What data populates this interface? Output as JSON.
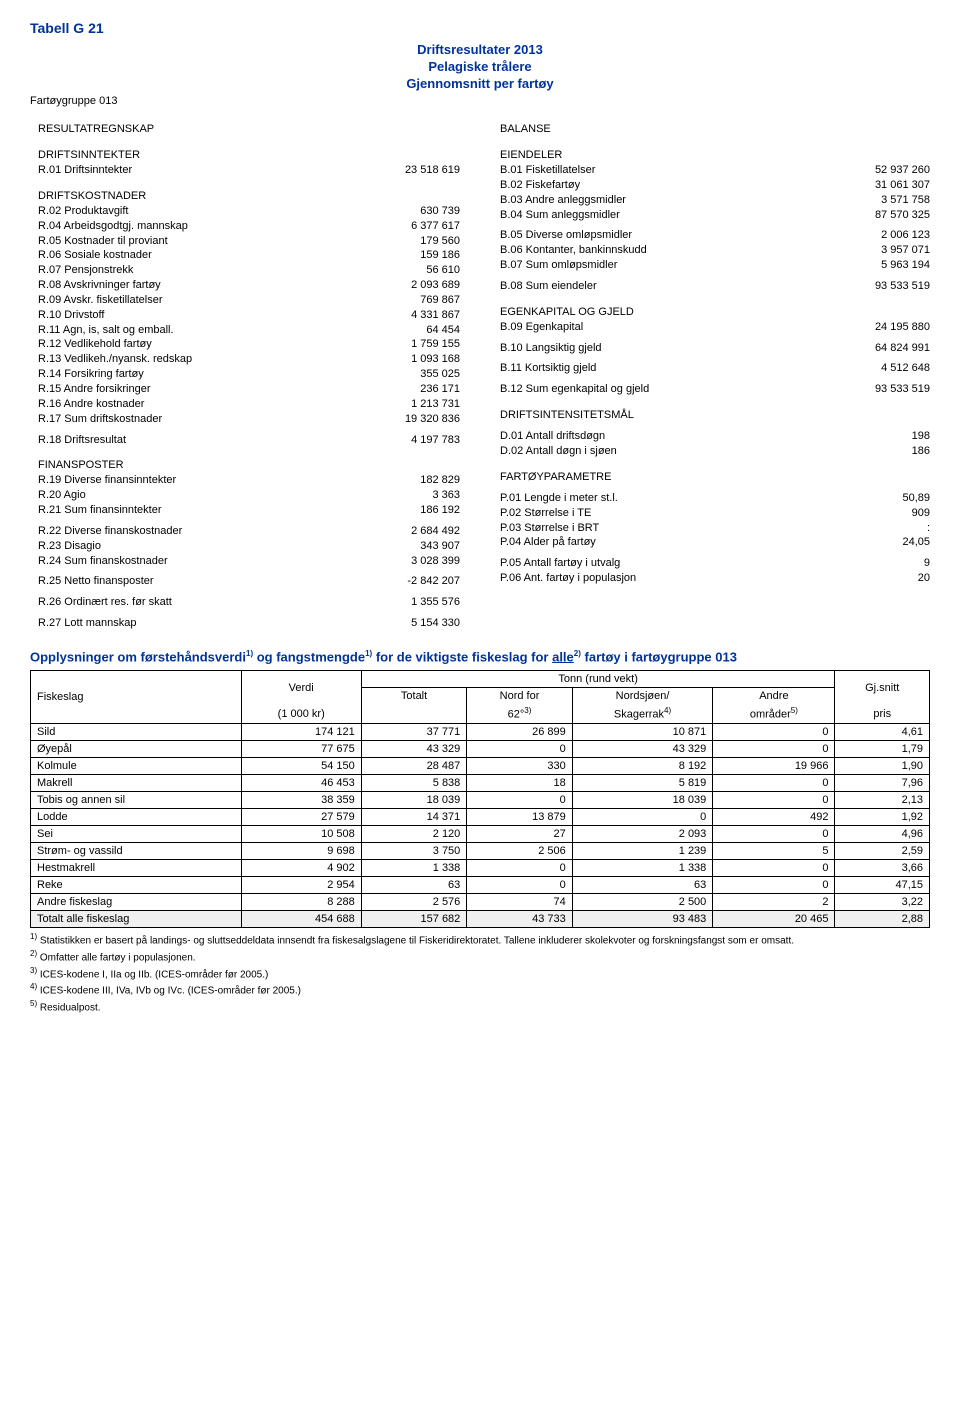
{
  "header": {
    "table_label": "Tabell G 21",
    "title": "Driftsresultater 2013",
    "subtitle1": "Pelagiske trålere",
    "subtitle2": "Gjennomsnitt per fartøy",
    "group": "Fartøygruppe 013"
  },
  "left": {
    "h1": "RESULTATREGNSKAP",
    "h2": "DRIFTSINNTEKTER",
    "r01": {
      "l": "R.01 Driftsinntekter",
      "v": "23 518 619"
    },
    "h3": "DRIFTSKOSTNADER",
    "r02": {
      "l": "R.02 Produktavgift",
      "v": "630 739"
    },
    "r03": {
      "l": "R.04 Arbeidsgodtgj. mannskap",
      "v": "6 377 617"
    },
    "r04": {
      "l": "R.05 Kostnader til proviant",
      "v": "179 560"
    },
    "r05": {
      "l": "R.06 Sosiale kostnader",
      "v": "159 186"
    },
    "r06": {
      "l": "R.07 Pensjonstrekk",
      "v": "56 610"
    },
    "r07": {
      "l": "R.08 Avskrivninger fartøy",
      "v": "2 093 689"
    },
    "r08": {
      "l": "R.09 Avskr. fisketillatelser",
      "v": "769 867"
    },
    "r09": {
      "l": "R.10 Drivstoff",
      "v": "4 331 867"
    },
    "r10": {
      "l": "R.11 Agn, is, salt og emball.",
      "v": "64 454"
    },
    "r11": {
      "l": "R.12 Vedlikehold fartøy",
      "v": "1 759 155"
    },
    "r12": {
      "l": "R.13 Vedlikeh./nyansk. redskap",
      "v": "1 093 168"
    },
    "r13": {
      "l": "R.14 Forsikring fartøy",
      "v": "355 025"
    },
    "r14": {
      "l": "R.15 Andre forsikringer",
      "v": "236 171"
    },
    "r15": {
      "l": "R.16 Andre kostnader",
      "v": "1 213 731"
    },
    "r16": {
      "l": "R.17 Sum driftskostnader",
      "v": "19 320 836"
    },
    "r17": {
      "l": "R.18 Driftsresultat",
      "v": "4 197 783"
    },
    "h4": "FINANSPOSTER",
    "r18": {
      "l": "R.19 Diverse finansinntekter",
      "v": "182 829"
    },
    "r19": {
      "l": "R.20 Agio",
      "v": "3 363"
    },
    "r20": {
      "l": "R.21 Sum finansinntekter",
      "v": "186 192"
    },
    "r21": {
      "l": "R.22 Diverse finanskostnader",
      "v": "2 684 492"
    },
    "r22": {
      "l": "R.23 Disagio",
      "v": "343 907"
    },
    "r23": {
      "l": "R.24 Sum finanskostnader",
      "v": "3 028 399"
    },
    "r24": {
      "l": "R.25 Netto finansposter",
      "v": "-2 842 207"
    },
    "r25": {
      "l": "R.26 Ordinært res. før skatt",
      "v": "1 355 576"
    },
    "r26": {
      "l": "R.27 Lott mannskap",
      "v": "5 154 330"
    }
  },
  "right": {
    "h1": "BALANSE",
    "h2": "EIENDELER",
    "b01": {
      "l": "B.01 Fisketillatelser",
      "v": "52 937 260"
    },
    "b02": {
      "l": "B.02 Fiskefartøy",
      "v": "31 061 307"
    },
    "b03": {
      "l": "B.03 Andre anleggsmidler",
      "v": "3 571 758"
    },
    "b04": {
      "l": "B.04 Sum anleggsmidler",
      "v": "87 570 325"
    },
    "b05": {
      "l": "B.05 Diverse omløpsmidler",
      "v": "2 006 123"
    },
    "b06": {
      "l": "B.06 Kontanter, bankinnskudd",
      "v": "3 957 071"
    },
    "b07": {
      "l": "B.07 Sum omløpsmidler",
      "v": "5 963 194"
    },
    "b08": {
      "l": "B.08 Sum eiendeler",
      "v": "93 533 519"
    },
    "h3": "EGENKAPITAL OG GJELD",
    "b09": {
      "l": "B.09 Egenkapital",
      "v": "24 195 880"
    },
    "b10": {
      "l": "B.10 Langsiktig gjeld",
      "v": "64 824 991"
    },
    "b11": {
      "l": "B.11 Kortsiktig gjeld",
      "v": "4 512 648"
    },
    "b12": {
      "l": "B.12 Sum egenkapital og gjeld",
      "v": "93 533 519"
    },
    "h4": "DRIFTSINTENSITETSMÅL",
    "d01": {
      "l": "D.01 Antall driftsdøgn",
      "v": "198"
    },
    "d02": {
      "l": "D.02 Antall døgn i sjøen",
      "v": "186"
    },
    "h5": "FARTØYPARAMETRE",
    "p01": {
      "l": "P.01 Lengde i meter st.l.",
      "v": "50,89"
    },
    "p02": {
      "l": "P.02 Størrelse i TE",
      "v": "909"
    },
    "p03": {
      "l": "P.03 Størrelse i BRT",
      "v": ":"
    },
    "p04": {
      "l": "P.04 Alder på fartøy",
      "v": "24,05"
    },
    "p05": {
      "l": "P.05 Antall fartøy i utvalg",
      "v": "9"
    },
    "p06": {
      "l": "P.06 Ant. fartøy i populasjon",
      "v": "20"
    }
  },
  "catch_section": {
    "title_pre": "Opplysninger om førstehåndsverdi",
    "title_mid": " og fangstmengde",
    "title_post": " for de viktigste fiskeslag for ",
    "title_link": "alle",
    "title_end": " fartøy i fartøygruppe 013",
    "sup1": "1)",
    "sup2": "2)",
    "tonn_header": "Tonn (rund vekt)",
    "col_fiskeslag": "Fiskeslag",
    "col_verdi": "Verdi",
    "col_verdi_unit": "(1 000 kr)",
    "col_totalt": "Totalt",
    "col_nord": "Nord for",
    "col_nord_unit": "62°",
    "col_nord_sup": "3)",
    "col_nordsjoen": "Nordsjøen/",
    "col_skagerrak": "Skagerrak",
    "col_skag_sup": "4)",
    "col_andre": "Andre",
    "col_andre2": "områder",
    "col_andre_sup": "5)",
    "col_pris": "Gj.snitt",
    "col_pris2": "pris",
    "rows": [
      {
        "name": "Sild",
        "v": [
          "174 121",
          "37 771",
          "26 899",
          "10 871",
          "0",
          "4,61"
        ]
      },
      {
        "name": "Øyepål",
        "v": [
          "77 675",
          "43 329",
          "0",
          "43 329",
          "0",
          "1,79"
        ]
      },
      {
        "name": "Kolmule",
        "v": [
          "54 150",
          "28 487",
          "330",
          "8 192",
          "19 966",
          "1,90"
        ]
      },
      {
        "name": "Makrell",
        "v": [
          "46 453",
          "5 838",
          "18",
          "5 819",
          "0",
          "7,96"
        ]
      },
      {
        "name": "Tobis og annen sil",
        "v": [
          "38 359",
          "18 039",
          "0",
          "18 039",
          "0",
          "2,13"
        ]
      },
      {
        "name": "Lodde",
        "v": [
          "27 579",
          "14 371",
          "13 879",
          "0",
          "492",
          "1,92"
        ]
      },
      {
        "name": "Sei",
        "v": [
          "10 508",
          "2 120",
          "27",
          "2 093",
          "0",
          "4,96"
        ]
      },
      {
        "name": "Strøm- og vassild",
        "v": [
          "9 698",
          "3 750",
          "2 506",
          "1 239",
          "5",
          "2,59"
        ]
      },
      {
        "name": "Hestmakrell",
        "v": [
          "4 902",
          "1 338",
          "0",
          "1 338",
          "0",
          "3,66"
        ]
      },
      {
        "name": "Reke",
        "v": [
          "2 954",
          "63",
          "0",
          "63",
          "0",
          "47,15"
        ]
      },
      {
        "name": "Andre fiskeslag",
        "v": [
          "8 288",
          "2 576",
          "74",
          "2 500",
          "2",
          "3,22"
        ]
      }
    ],
    "total": {
      "name": "Totalt alle fiskeslag",
      "v": [
        "454 688",
        "157 682",
        "43 733",
        "93 483",
        "20 465",
        "2,88"
      ]
    }
  },
  "footnotes": {
    "f1_sup": "1)",
    "f1": " Statistikken er basert på landings- og sluttseddeldata innsendt fra fiskesalgslagene til Fiskeridirektoratet. Tallene inkluderer skolekvoter og forskningsfangst som er omsatt.",
    "f2_sup": "2)",
    "f2": " Omfatter alle fartøy i populasjonen.",
    "f3_sup": "3)",
    "f3": " ICES-kodene I, IIa og IIb. (ICES-områder før 2005.)",
    "f4_sup": "4)",
    "f4": " ICES-kodene III, IVa, IVb og IVc. (ICES-områder før 2005.)",
    "f5_sup": "5)",
    "f5": " Residualpost."
  }
}
